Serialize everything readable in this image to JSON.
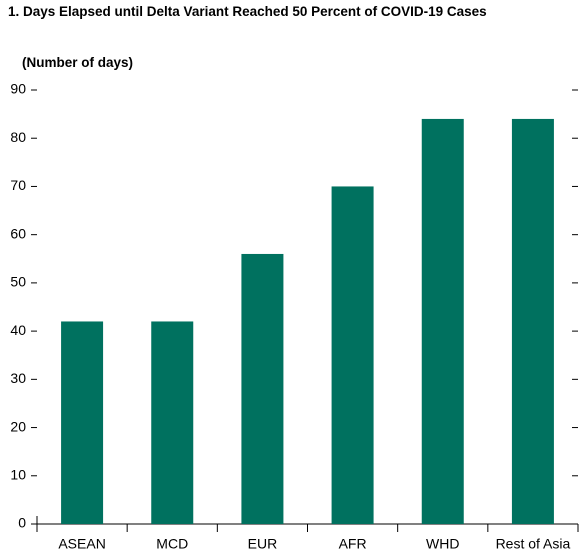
{
  "chart_data": {
    "type": "bar",
    "title": "1. Days Elapsed until Delta Variant Reached 50 Percent of COVID-19 Cases",
    "subtitle": "(Number of days)",
    "categories": [
      "ASEAN",
      "MCD",
      "EUR",
      "AFR",
      "WHD",
      "Rest of Asia"
    ],
    "values": [
      42,
      42,
      56,
      70,
      84,
      84
    ],
    "color": "#00715f",
    "ylim": [
      0,
      90
    ],
    "yticks": [
      0,
      10,
      20,
      30,
      40,
      50,
      60,
      70,
      80,
      90
    ],
    "grid": false
  }
}
